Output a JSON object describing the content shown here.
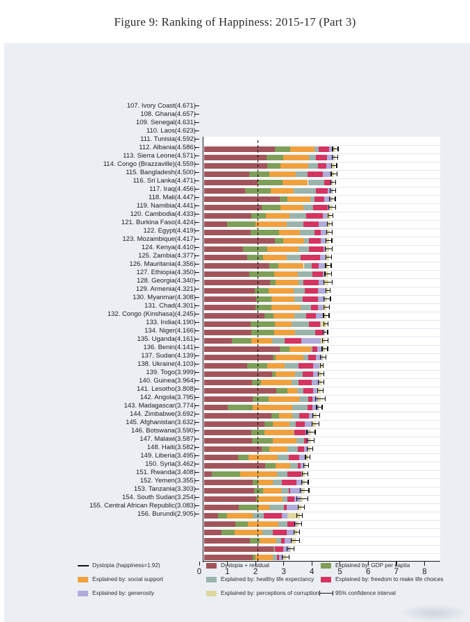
{
  "figure": {
    "title": "Figure 9: Ranking of Happiness: 2015-17 (Part 3)"
  },
  "colors": {
    "panel_bg": "#ebeff4",
    "plot_bg": "#ffffff",
    "residual": "#a2545b",
    "gdp": "#7f9e58",
    "social": "#f0a13e",
    "health": "#9ab4ab",
    "freedom": "#d53360",
    "generosity": "#b0abdb",
    "corruption": "#ded7a0",
    "axis": "#151515"
  },
  "chart_data": {
    "type": "bar",
    "orientation": "horizontal-stacked",
    "title": "Figure 9: Ranking of Happiness: 2015-17 (Part 3)",
    "xlabel": "",
    "ylabel": "",
    "xlim": [
      0,
      8.4
    ],
    "x_ticks": [
      0,
      1,
      2,
      3,
      4,
      5,
      6,
      7,
      8
    ],
    "grid": "row-separators",
    "dystopia_value": 1.92,
    "series_order": [
      "Dystopia + residual",
      "Explained by: GDP per capita",
      "Explained by: social support",
      "Explained by: healthy life expectancy",
      "Explained by: freedom to make life choices",
      "Explained by: generosity",
      "Explained by: perceptions of corruption"
    ],
    "components": [
      {
        "key": "residual",
        "label": "Dystopia + residual",
        "color": "#a2545b"
      },
      {
        "key": "gdp",
        "label": "Explained by: GDP per capita",
        "color": "#7f9e58"
      },
      {
        "key": "social",
        "label": "Explained by: social support",
        "color": "#f0a13e"
      },
      {
        "key": "health",
        "label": "Explained by: healthy life expectancy",
        "color": "#9ab4ab"
      },
      {
        "key": "freedom",
        "label": "Explained by: freedom to make life choices",
        "color": "#d53360"
      },
      {
        "key": "generosity",
        "label": "Explained by: generosity",
        "color": "#b0abdb"
      },
      {
        "key": "corruption",
        "label": "Explained by: perceptions of corruption",
        "color": "#ded7a0"
      }
    ],
    "rows": [
      {
        "rank": 107,
        "country": "Ivory Coast",
        "score": 4.671,
        "values": [
          2.511,
          0.54,
          0.87,
          0.16,
          0.36,
          0.14,
          0.09
        ],
        "ci": 0.1
      },
      {
        "rank": 108,
        "country": "Ghana",
        "score": 4.657,
        "values": [
          2.217,
          0.59,
          0.91,
          0.26,
          0.39,
          0.25,
          0.04
        ],
        "ci": 0.1
      },
      {
        "rank": 109,
        "country": "Senegal",
        "score": 4.631,
        "values": [
          2.251,
          0.46,
          1.0,
          0.35,
          0.29,
          0.19,
          0.09
        ],
        "ci": 0.09
      },
      {
        "rank": 110,
        "country": "Laos",
        "score": 4.623,
        "values": [
          1.613,
          0.72,
          0.92,
          0.42,
          0.56,
          0.26,
          0.13
        ],
        "ci": 0.1
      },
      {
        "rank": 111,
        "country": "Tunisia",
        "score": 4.592,
        "values": [
          1.902,
          0.89,
          0.9,
          0.57,
          0.24,
          0.03,
          0.06
        ],
        "ci": 0.09
      },
      {
        "rank": 112,
        "country": "Albania",
        "score": 4.586,
        "values": [
          1.456,
          0.92,
          0.82,
          0.79,
          0.42,
          0.15,
          0.03
        ],
        "ci": 0.1
      },
      {
        "rank": 113,
        "country": "Sierra Leone",
        "score": 4.571,
        "values": [
          2.701,
          0.26,
          0.81,
          0.15,
          0.36,
          0.24,
          0.05
        ],
        "ci": 0.1
      },
      {
        "rank": 114,
        "country": "Congo (Brazzaville)",
        "score": 4.559,
        "values": [
          2.049,
          0.68,
          0.81,
          0.34,
          0.51,
          0.09,
          0.08
        ],
        "ci": 0.12
      },
      {
        "rank": 115,
        "country": "Bangladesh",
        "score": 4.5,
        "values": [
          1.67,
          0.53,
          0.85,
          0.58,
          0.58,
          0.15,
          0.14
        ],
        "ci": 0.08
      },
      {
        "rank": 116,
        "country": "Sri Lanka",
        "score": 4.471,
        "values": [
          0.831,
          1.0,
          1.11,
          0.6,
          0.53,
          0.31,
          0.09
        ],
        "ci": 0.09
      },
      {
        "rank": 117,
        "country": "Iraq",
        "score": 4.456,
        "values": [
          1.656,
          1.01,
          0.75,
          0.5,
          0.24,
          0.2,
          0.1
        ],
        "ci": 0.1
      },
      {
        "rank": 118,
        "country": "Mali",
        "score": 4.447,
        "values": [
          2.517,
          0.31,
          0.74,
          0.16,
          0.41,
          0.19,
          0.12
        ],
        "ci": 0.1
      },
      {
        "rank": 119,
        "country": "Namibia",
        "score": 4.441,
        "values": [
          1.391,
          0.87,
          1.1,
          0.36,
          0.52,
          0.1,
          0.1
        ],
        "ci": 0.12
      },
      {
        "rank": 120,
        "country": "Cambodia",
        "score": 4.433,
        "values": [
          1.543,
          0.55,
          0.84,
          0.5,
          0.7,
          0.22,
          0.08
        ],
        "ci": 0.1
      },
      {
        "rank": 121,
        "country": "Burkina Faso",
        "score": 4.424,
        "values": [
          2.324,
          0.31,
          0.91,
          0.29,
          0.25,
          0.22,
          0.12
        ],
        "ci": 0.1
      },
      {
        "rank": 122,
        "country": "Egypt",
        "score": 4.419,
        "values": [
          1.609,
          0.89,
          0.84,
          0.52,
          0.37,
          0.08,
          0.11
        ],
        "ci": 0.12
      },
      {
        "rank": 123,
        "country": "Mozambique",
        "score": 4.417,
        "values": [
          2.357,
          0.2,
          0.79,
          0.18,
          0.54,
          0.21,
          0.14
        ],
        "ci": 0.15
      },
      {
        "rank": 124,
        "country": "Kenya",
        "score": 4.41,
        "values": [
          1.81,
          0.49,
          0.88,
          0.4,
          0.48,
          0.29,
          0.06
        ],
        "ci": 0.08
      },
      {
        "rank": 125,
        "country": "Zambia",
        "score": 4.377,
        "values": [
          1.847,
          0.56,
          0.8,
          0.29,
          0.55,
          0.25,
          0.08
        ],
        "ci": 0.12
      },
      {
        "rank": 126,
        "country": "Mauritania",
        "score": 4.356,
        "values": [
          1.836,
          0.57,
          1.03,
          0.36,
          0.26,
          0.16,
          0.14
        ],
        "ci": 0.1
      },
      {
        "rank": 127,
        "country": "Ethiopia",
        "score": 4.35,
        "values": [
          2.16,
          0.31,
          0.75,
          0.4,
          0.35,
          0.25,
          0.13
        ],
        "ci": 0.1
      },
      {
        "rank": 128,
        "country": "Georgia",
        "score": 4.34,
        "values": [
          1.66,
          0.85,
          0.59,
          0.64,
          0.38,
          0.04,
          0.18
        ],
        "ci": 0.08
      },
      {
        "rank": 129,
        "country": "Armenia",
        "score": 4.321,
        "values": [
          1.671,
          0.82,
          0.75,
          0.71,
          0.26,
          0.08,
          0.03
        ],
        "ci": 0.08
      },
      {
        "rank": 130,
        "country": "Myanmar",
        "score": 4.308,
        "values": [
          0.998,
          0.68,
          0.74,
          0.45,
          0.58,
          0.69,
          0.17
        ],
        "ci": 0.1
      },
      {
        "rank": 131,
        "country": "Chad",
        "score": 4.301,
        "values": [
          2.681,
          0.36,
          0.77,
          0.05,
          0.17,
          0.19,
          0.08
        ],
        "ci": 0.1
      },
      {
        "rank": 132,
        "country": "Congo (Kinshasa)",
        "score": 4.245,
        "values": [
          2.445,
          0.09,
          1.0,
          0.18,
          0.26,
          0.22,
          0.05
        ],
        "ci": 0.1
      },
      {
        "rank": 133,
        "country": "India",
        "score": 4.19,
        "values": [
          1.54,
          0.72,
          0.6,
          0.51,
          0.51,
          0.22,
          0.09
        ],
        "ci": 0.05
      },
      {
        "rank": 134,
        "country": "Niger",
        "score": 4.166,
        "values": [
          2.416,
          0.14,
          0.67,
          0.27,
          0.38,
          0.19,
          0.1
        ],
        "ci": 0.1
      },
      {
        "rank": 135,
        "country": "Uganda",
        "score": 4.161,
        "values": [
          1.711,
          0.32,
          1.09,
          0.24,
          0.46,
          0.28,
          0.06
        ],
        "ci": 0.1
      },
      {
        "rank": 136,
        "country": "Benin",
        "score": 4.141,
        "values": [
          2.571,
          0.39,
          0.35,
          0.22,
          0.35,
          0.18,
          0.08
        ],
        "ci": 0.1
      },
      {
        "rank": 137,
        "country": "Sudan",
        "score": 4.139,
        "values": [
          1.729,
          0.56,
          1.1,
          0.32,
          0.14,
          0.19,
          0.1
        ],
        "ci": 0.18
      },
      {
        "rank": 138,
        "country": "Ukraine",
        "score": 4.103,
        "values": [
          0.833,
          0.91,
          1.39,
          0.55,
          0.18,
          0.22,
          0.02
        ],
        "ci": 0.1
      },
      {
        "rank": 139,
        "country": "Togo",
        "score": 3.999,
        "values": [
          2.409,
          0.26,
          0.47,
          0.25,
          0.33,
          0.18,
          0.1
        ],
        "ci": 0.12
      },
      {
        "rank": 140,
        "country": "Guinea",
        "score": 3.964,
        "values": [
          2.144,
          0.31,
          0.59,
          0.21,
          0.32,
          0.28,
          0.11
        ],
        "ci": 0.12
      },
      {
        "rank": 141,
        "country": "Lesotho",
        "score": 3.808,
        "values": [
          1.678,
          0.47,
          1.05,
          0.01,
          0.39,
          0.12,
          0.09
        ],
        "ci": 0.15
      },
      {
        "rank": 142,
        "country": "Angola",
        "score": 3.795,
        "values": [
          1.705,
          0.73,
          0.84,
          0.27,
          0.11,
          0.08,
          0.06
        ],
        "ci": 0.12
      },
      {
        "rank": 143,
        "country": "Madagascar",
        "score": 3.774,
        "values": [
          2.054,
          0.26,
          0.64,
          0.38,
          0.22,
          0.16,
          0.06
        ],
        "ci": 0.1
      },
      {
        "rank": 144,
        "country": "Zimbabwe",
        "score": 3.692,
        "values": [
          1.222,
          0.36,
          1.04,
          0.38,
          0.38,
          0.21,
          0.1
        ],
        "ci": 0.08
      },
      {
        "rank": 145,
        "country": "Afghanistan",
        "score": 3.632,
        "values": [
          2.182,
          0.37,
          0.52,
          0.26,
          0.09,
          0.17,
          0.04
        ],
        "ci": 0.08
      },
      {
        "rank": 146,
        "country": "Botswana",
        "score": 3.59,
        "values": [
          0.27,
          1.02,
          1.3,
          0.38,
          0.49,
          0.03,
          0.1
        ],
        "ci": 0.1
      },
      {
        "rank": 147,
        "country": "Malawi",
        "score": 3.587,
        "values": [
          1.727,
          0.19,
          0.54,
          0.31,
          0.53,
          0.21,
          0.08
        ],
        "ci": 0.12
      },
      {
        "rank": 148,
        "country": "Haiti",
        "score": 3.582,
        "values": [
          1.782,
          0.32,
          0.64,
          0.28,
          0.03,
          0.42,
          0.11
        ],
        "ci": 0.15
      },
      {
        "rank": 149,
        "country": "Liberia",
        "score": 3.495,
        "values": [
          1.855,
          0.08,
          0.86,
          0.16,
          0.25,
          0.24,
          0.05
        ],
        "ci": 0.2
      },
      {
        "rank": 150,
        "country": "Syria",
        "score": 3.462,
        "values": [
          1.242,
          0.69,
          0.38,
          0.54,
          0.09,
          0.38,
          0.14
        ],
        "ci": 0.12
      },
      {
        "rank": 151,
        "country": "Rwanda",
        "score": 3.408,
        "values": [
          0.498,
          0.33,
          0.9,
          0.4,
          0.64,
          0.2,
          0.44
        ],
        "ci": 0.1
      },
      {
        "rank": 152,
        "country": "Yemen",
        "score": 3.355,
        "values": [
          1.125,
          0.44,
          1.07,
          0.34,
          0.24,
          0.08,
          0.06
        ],
        "ci": 0.12
      },
      {
        "rank": 153,
        "country": "Tanzania",
        "score": 3.303,
        "values": [
          0.623,
          0.46,
          0.99,
          0.38,
          0.48,
          0.27,
          0.1
        ],
        "ci": 0.1
      },
      {
        "rank": 154,
        "country": "South Sudan",
        "score": 3.254,
        "values": [
          1.634,
          0.34,
          0.6,
          0.18,
          0.11,
          0.26,
          0.13
        ],
        "ci": 0.15
      },
      {
        "rank": 155,
        "country": "Central African Republic",
        "score": 3.083,
        "values": [
          2.483,
          0.02,
          0.0,
          0.01,
          0.31,
          0.22,
          0.04
        ],
        "ci": 0.12
      },
      {
        "rank": 156,
        "country": "Burundi",
        "score": 2.905,
        "values": [
          1.735,
          0.09,
          0.63,
          0.15,
          0.07,
          0.15,
          0.08
        ],
        "ci": 0.12
      }
    ]
  },
  "legend": {
    "position": "bottom",
    "items": [
      {
        "swatch": "line",
        "color": "#101010",
        "label": "Dystopia (happiness=1.92)",
        "col": 0,
        "row": 0
      },
      {
        "swatch": "box",
        "color": "#a2545b",
        "label": "Dystopia + residual",
        "col": 1,
        "row": 0
      },
      {
        "swatch": "box",
        "color": "#7f9e58",
        "label": "Explained by: GDP per capita",
        "col": 2,
        "row": 0
      },
      {
        "swatch": "box",
        "color": "#f0a13e",
        "label": "Explained by: social support",
        "col": 0,
        "row": 1
      },
      {
        "swatch": "box",
        "color": "#9ab4ab",
        "label": "Explained by: healthy life expectancy",
        "col": 1,
        "row": 1
      },
      {
        "swatch": "box",
        "color": "#d53360",
        "label": "Explained by: freedom to make life choices",
        "col": 2,
        "row": 1
      },
      {
        "swatch": "box",
        "color": "#b0abdb",
        "label": "Explained by: generosity",
        "col": 0,
        "row": 2
      },
      {
        "swatch": "box",
        "color": "#ded7a0",
        "label": "Explained by: perceptions of corruption",
        "col": 1,
        "row": 2
      },
      {
        "swatch": "errorbar",
        "color": "#101010",
        "label": "95% confidence interval",
        "col": 2,
        "row": 2
      }
    ]
  }
}
